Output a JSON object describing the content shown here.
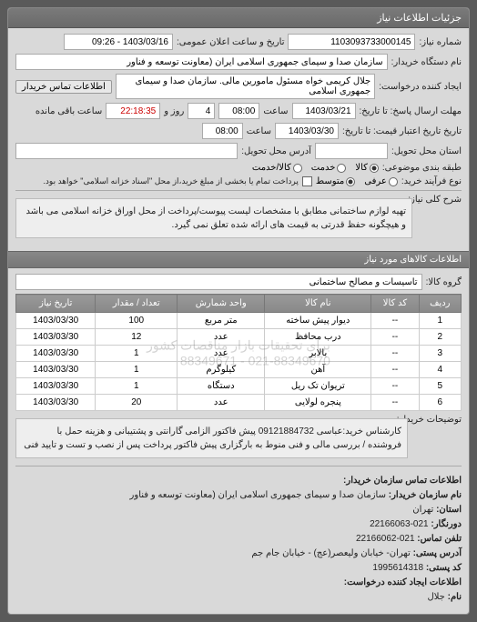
{
  "header": {
    "title": "جزئیات اطلاعات نیاز"
  },
  "top": {
    "reqnum_label": "شماره نیاز:",
    "reqnum": "1103093733000145",
    "announce_label": "تاریخ و ساعت اعلان عمومی:",
    "announce": "1403/03/16 - 09:26",
    "buyer_label": "نام دستگاه خریدار:",
    "buyer": "سازمان صدا و سیمای جمهوری اسلامی ایران (معاونت توسعه و فناور",
    "creator_label": "ایجاد کننده درخواست:",
    "creator": "جلال کریمی خواه مسئول مامورین مالی. سازمان صدا و سیمای جمهوری اسلامی",
    "contact_btn": "اطلاعات تماس خریدار"
  },
  "deadlines": {
    "response_from_label": "مهلت ارسال پاسخ: تا تاریخ:",
    "response_date": "1403/03/21",
    "time_label": "ساعت",
    "response_time": "08:00",
    "days": "4",
    "days_label": "روز و",
    "remaining": "22:18:35",
    "remaining_label": "ساعت باقی مانده",
    "validity_label": "تاریخ تاریخ اعتبار قیمت: تا تاریخ:",
    "validity_date": "1403/03/30",
    "validity_time": "08:00",
    "collect_label": "استان محل تحویل:",
    "address_label": "آدرس محل تحویل:"
  },
  "budget": {
    "label": "طبقه بندی موضوعی:",
    "opt_goods": "کالا",
    "opt_service": "خدمت",
    "opt_goods_service": "کالا/خدمت",
    "selected": "goods"
  },
  "process": {
    "label": "نوع فرآیند خرید:",
    "opt_urgent": "عرفی",
    "opt_medium": "متوسط",
    "opt_note": "پرداخت تمام یا بخشی از مبلغ خرید،از محل \"اسناد خزانه اسلامی\" خواهد بود.",
    "selected": "medium"
  },
  "desc": {
    "label": "شرح کلی نیاز:",
    "text": "تهیه لوازم ساختمانی مطابق با مشخصات لیست پیوست/پرداخت از محل اوراق خزانه اسلامی می باشد و هیچگونه حفظ قدرتی به قیمت های ارائه شده تعلق نمی گیرد."
  },
  "goods_section": {
    "title": "اطلاعات کالاهای مورد نیاز",
    "group_label": "گروه کالا:",
    "group": "تاسیسات و مصالح ساختمانی"
  },
  "table": {
    "headers": [
      "ردیف",
      "کد کالا",
      "نام کالا",
      "واحد شمارش",
      "تعداد / مقدار",
      "تاریخ نیاز"
    ],
    "rows": [
      [
        "1",
        "--",
        "دیوار پیش ساخته",
        "متر مربع",
        "100",
        "1403/03/30"
      ],
      [
        "2",
        "--",
        "درب محافظ",
        "عدد",
        "12",
        "1403/03/30"
      ],
      [
        "3",
        "--",
        "بالابر",
        "عدد",
        "1",
        "1403/03/30"
      ],
      [
        "4",
        "--",
        "آهن",
        "کیلوگرم",
        "1",
        "1403/03/30"
      ],
      [
        "5",
        "--",
        "تریوان تک ریل",
        "دستگاه",
        "1",
        "1403/03/30"
      ],
      [
        "6",
        "--",
        "پنجره لولایی",
        "عدد",
        "20",
        "1403/03/30"
      ]
    ],
    "watermark1": "برای تحقیقات بازار مناقصات کشور",
    "watermark2": "021-88349670 - 88349671"
  },
  "notes": {
    "label": "توضیحات خریدار:",
    "text": "کارشناس خرید:عباسی 09121884732 پیش فاکتور الزامی گارانتی و پشتیبانی و هزینه حمل با فروشنده / بررسی مالی و فنی منوط به بارگزاری پیش فاکتور پرداخت پس از نصب و تست و تایید فنی"
  },
  "footer": {
    "title": "اطلاعات تماس سازمان خریدار:",
    "org_label": "نام سازمان خریدار:",
    "org": "سازمان صدا و سیمای جمهوری اسلامی ایران (معاونت توسعه و فناور",
    "province_label": "استان:",
    "province": "تهران",
    "fax_label": "دورنگار:",
    "fax": "021-22166063",
    "phone_label": "تلفن تماس:",
    "phone": "021-22166062",
    "address_label": "آدرس پستی:",
    "address": "تهران- خیابان ولیعصر(عج) - خیابان جام جم",
    "postal_label": "کد پستی:",
    "postal": "1995614318",
    "creator2_label": "اطلاعات ایجاد کننده درخواست:",
    "name_label": "نام:",
    "name": "جلال"
  }
}
